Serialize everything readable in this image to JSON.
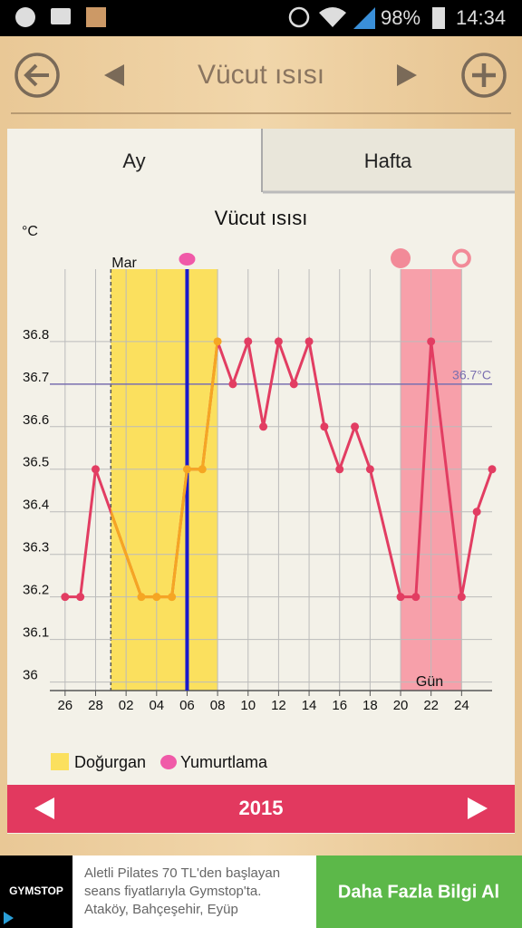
{
  "status_bar": {
    "battery": "98%",
    "time": "14:34"
  },
  "header": {
    "title": "Vücut ısısı"
  },
  "tabs": [
    "Ay",
    "Hafta"
  ],
  "chart_data": {
    "type": "line",
    "title": "Vücut ısısı",
    "y_label": "°C",
    "x_label": "Gün",
    "month_label": "Mar",
    "x": [
      "2015-02-26",
      "2015-02-27",
      "2015-02-28",
      "2015-03-03",
      "2015-03-04",
      "2015-03-05",
      "2015-03-06",
      "2015-03-07",
      "2015-03-08",
      "2015-03-09",
      "2015-03-10",
      "2015-03-11",
      "2015-03-12",
      "2015-03-13",
      "2015-03-14",
      "2015-03-15",
      "2015-03-16",
      "2015-03-17",
      "2015-03-18",
      "2015-03-20",
      "2015-03-21",
      "2015-03-22",
      "2015-03-24",
      "2015-03-25",
      "2015-03-26"
    ],
    "series": [
      {
        "color": "#e23d62",
        "fertile_color": "#f5a623",
        "values": [
          36.2,
          36.2,
          36.5,
          36.2,
          36.2,
          36.2,
          36.5,
          36.5,
          36.8,
          36.7,
          36.8,
          36.6,
          36.8,
          36.7,
          36.8,
          36.6,
          36.5,
          36.6,
          36.5,
          36.2,
          36.2,
          36.8,
          36.2,
          36.4,
          36.5
        ]
      }
    ],
    "xlim": [
      "2015-02-25",
      "2015-03-26"
    ],
    "xticks": [
      {
        "value": "2015-02-26",
        "label": "26"
      },
      {
        "value": "2015-02-28",
        "label": "28"
      },
      {
        "value": "2015-03-02",
        "label": "02"
      },
      {
        "value": "2015-03-04",
        "label": "04"
      },
      {
        "value": "2015-03-06",
        "label": "06"
      },
      {
        "value": "2015-03-08",
        "label": "08"
      },
      {
        "value": "2015-03-10",
        "label": "10"
      },
      {
        "value": "2015-03-12",
        "label": "12"
      },
      {
        "value": "2015-03-14",
        "label": "14"
      },
      {
        "value": "2015-03-16",
        "label": "16"
      },
      {
        "value": "2015-03-18",
        "label": "18"
      },
      {
        "value": "2015-03-20",
        "label": "20"
      },
      {
        "value": "2015-03-22",
        "label": "22"
      },
      {
        "value": "2015-03-24",
        "label": "24"
      }
    ],
    "ylim": [
      35.98,
      36.97
    ],
    "yticks": [
      36,
      36.1,
      36.2,
      36.3,
      36.4,
      36.5,
      36.6,
      36.7,
      36.8
    ],
    "grid": true,
    "reference": {
      "value": 36.7,
      "label": "36.7°C",
      "color": "#7a6fb0"
    },
    "fertile": {
      "range": [
        "2015-03-01",
        "2015-03-08"
      ],
      "color": "#fbe05e",
      "label": "Doğurgan"
    },
    "ovulation": {
      "date": "2015-03-06",
      "color": "#1a1acc",
      "label": "Yumurtlama"
    },
    "period": {
      "range": [
        "2015-03-20",
        "2015-03-24"
      ],
      "color": "#f7a0aa"
    }
  },
  "year_bar": {
    "year": "2015"
  },
  "ad": {
    "logo": "GYMSTOP",
    "lines": [
      "Aletli Pilates 70 TL'den başlayan",
      "seans fiyatlarıyla Gymstop'ta.",
      "Ataköy, Bahçeşehir, Eyüp"
    ],
    "button": "Daha Fazla Bilgi Al"
  }
}
